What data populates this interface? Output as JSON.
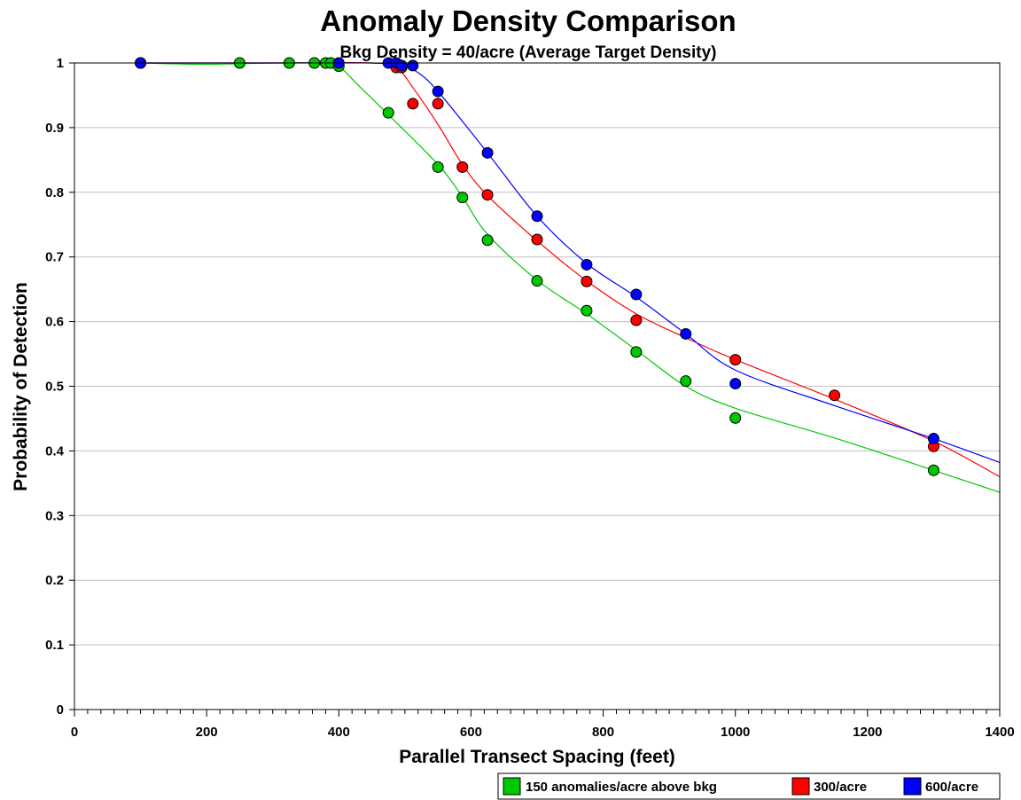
{
  "chart_data": {
    "type": "scatter",
    "title": "Anomaly Density Comparison",
    "subtitle": "Bkg Density = 40/acre (Average Target Density)",
    "xlabel": "Parallel Transect Spacing (feet)",
    "ylabel": "Probability of Detection",
    "xlim": [
      0,
      1400
    ],
    "ylim": [
      0,
      1
    ],
    "x_ticks": [
      0,
      200,
      400,
      600,
      800,
      1000,
      1200,
      1400
    ],
    "y_ticks": [
      0,
      0.1,
      0.2,
      0.3,
      0.4,
      0.5,
      0.6,
      0.7,
      0.8,
      0.9,
      1
    ],
    "y_tick_labels": [
      "0",
      "0.1",
      "0.2",
      "0.3",
      "0.4",
      "0.5",
      "0.6",
      "0.7",
      "0.8",
      "0.9",
      "1"
    ],
    "x_minor_tick_step": 20,
    "grid": "horizontal",
    "legend_position": "bottom-right",
    "series": [
      {
        "name": "150 anomalies/acre above bkg",
        "color": "#00c800",
        "points": [
          [
            100,
            1.0
          ],
          [
            250,
            1.0
          ],
          [
            325,
            1.0
          ],
          [
            363,
            1.0
          ],
          [
            380,
            1.0
          ],
          [
            388,
            1.0
          ],
          [
            400,
            0.995
          ],
          [
            475,
            0.923
          ],
          [
            550,
            0.839
          ],
          [
            587,
            0.792
          ],
          [
            625,
            0.726
          ],
          [
            700,
            0.663
          ],
          [
            775,
            0.617
          ],
          [
            850,
            0.553
          ],
          [
            925,
            0.508
          ],
          [
            1000,
            0.451
          ],
          [
            1300,
            0.37
          ]
        ],
        "curve": [
          [
            100,
            1.0
          ],
          [
            200,
            0.998
          ],
          [
            300,
            1.0
          ],
          [
            380,
            1.0
          ],
          [
            400,
            0.995
          ],
          [
            430,
            0.965
          ],
          [
            475,
            0.92
          ],
          [
            550,
            0.843
          ],
          [
            587,
            0.793
          ],
          [
            625,
            0.735
          ],
          [
            700,
            0.664
          ],
          [
            775,
            0.612
          ],
          [
            850,
            0.556
          ],
          [
            925,
            0.5
          ],
          [
            1000,
            0.466
          ],
          [
            1150,
            0.42
          ],
          [
            1300,
            0.37
          ],
          [
            1400,
            0.336
          ]
        ]
      },
      {
        "name": "300/acre",
        "color": "#ff0000",
        "points": [
          [
            100,
            1.0
          ],
          [
            487,
            0.993
          ],
          [
            495,
            0.993
          ],
          [
            512,
            0.937
          ],
          [
            550,
            0.937
          ],
          [
            587,
            0.839
          ],
          [
            625,
            0.796
          ],
          [
            700,
            0.727
          ],
          [
            775,
            0.662
          ],
          [
            850,
            0.602
          ],
          [
            1000,
            0.541
          ],
          [
            1150,
            0.486
          ],
          [
            1300,
            0.407
          ]
        ],
        "curve": [
          [
            100,
            1.0
          ],
          [
            300,
            1.0
          ],
          [
            450,
            1.0
          ],
          [
            487,
            0.993
          ],
          [
            512,
            0.962
          ],
          [
            550,
            0.905
          ],
          [
            587,
            0.843
          ],
          [
            625,
            0.795
          ],
          [
            700,
            0.725
          ],
          [
            775,
            0.663
          ],
          [
            850,
            0.612
          ],
          [
            925,
            0.575
          ],
          [
            1000,
            0.541
          ],
          [
            1150,
            0.48
          ],
          [
            1300,
            0.415
          ],
          [
            1400,
            0.36
          ]
        ]
      },
      {
        "name": "600/acre",
        "color": "#0000ff",
        "points": [
          [
            100,
            1.0
          ],
          [
            400,
            1.0
          ],
          [
            475,
            1.0
          ],
          [
            487,
            1.0
          ],
          [
            495,
            0.996
          ],
          [
            512,
            0.996
          ],
          [
            550,
            0.956
          ],
          [
            625,
            0.861
          ],
          [
            700,
            0.763
          ],
          [
            775,
            0.688
          ],
          [
            850,
            0.642
          ],
          [
            925,
            0.581
          ],
          [
            1000,
            0.504
          ],
          [
            1300,
            0.419
          ]
        ],
        "curve": [
          [
            100,
            1.0
          ],
          [
            300,
            1.0
          ],
          [
            450,
            1.0
          ],
          [
            495,
            0.996
          ],
          [
            520,
            0.985
          ],
          [
            550,
            0.956
          ],
          [
            625,
            0.861
          ],
          [
            700,
            0.763
          ],
          [
            775,
            0.69
          ],
          [
            850,
            0.638
          ],
          [
            925,
            0.581
          ],
          [
            1000,
            0.525
          ],
          [
            1150,
            0.47
          ],
          [
            1300,
            0.419
          ],
          [
            1400,
            0.382
          ]
        ]
      }
    ]
  }
}
